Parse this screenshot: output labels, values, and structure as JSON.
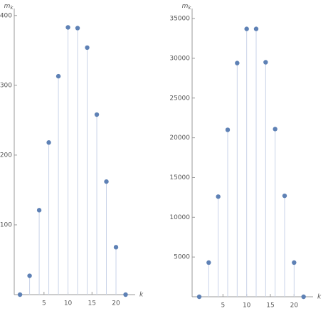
{
  "chart_data": [
    {
      "type": "stem",
      "y_label": "m",
      "y_label_sub": "k",
      "x_label": "k",
      "color": "#5e81b5",
      "x": [
        0,
        2,
        4,
        6,
        8,
        10,
        12,
        14,
        16,
        18,
        20,
        22
      ],
      "values": [
        0,
        27,
        121,
        218,
        313,
        383,
        382,
        354,
        258,
        162,
        68,
        0
      ],
      "xlim": [
        -1.2,
        24
      ],
      "xticks": [
        5,
        10,
        15,
        20
      ],
      "ylim": [
        0,
        410
      ],
      "yticks": [
        100,
        200,
        300,
        400
      ]
    },
    {
      "type": "stem",
      "y_label": "m",
      "y_label_sub": "k",
      "x_label": "k",
      "color": "#5e81b5",
      "x": [
        0,
        2,
        4,
        6,
        8,
        10,
        12,
        14,
        16,
        18,
        20,
        22
      ],
      "values": [
        0,
        4300,
        12600,
        21000,
        29400,
        33700,
        33700,
        29500,
        21100,
        12700,
        4300,
        0
      ],
      "xlim": [
        -1.5,
        24
      ],
      "xticks": [
        5,
        10,
        15,
        20
      ],
      "ylim": [
        0,
        36260
      ],
      "yticks": [
        5000,
        10000,
        15000,
        20000,
        25000,
        30000,
        35000
      ]
    }
  ]
}
